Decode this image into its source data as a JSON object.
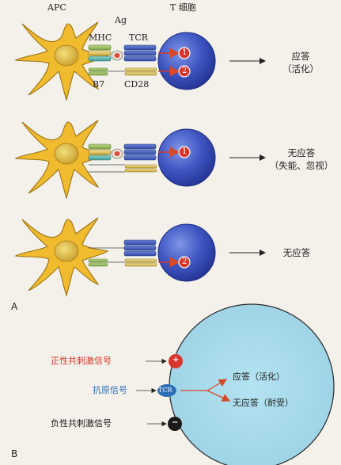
{
  "panel_a": {
    "panel_label": "A",
    "labels": {
      "apc": "APC",
      "ag": "Ag",
      "mhc": "MHC",
      "tcr": "TCR",
      "t_cell": "T 细胞",
      "b7": "B7",
      "cd28": "CD28"
    },
    "rows": [
      {
        "signals": [
          "1",
          "2"
        ],
        "result_line1": "应答",
        "result_line2": "（活化）"
      },
      {
        "signals": [
          "1"
        ],
        "result_line1": "无应答",
        "result_line2": "（失能、忽视）"
      },
      {
        "signals": [
          "2"
        ],
        "result_line1": "无应答",
        "result_line2": ""
      }
    ]
  },
  "panel_b": {
    "panel_label": "B",
    "positive_signal": "正性共刺激信号",
    "antigen_signal": "抗原信号",
    "negative_signal": "负性共刺激信号",
    "tcr_label": "TCR",
    "plus_symbol": "+",
    "minus_symbol": "−",
    "outcome_active": "应答（活化）",
    "outcome_tolerant": "无应答（耐受）",
    "colors": {
      "positive": "#d8352b",
      "antigen": "#2d6db5",
      "negative": "#1a1a1a",
      "cell_fill": "#a9dcec",
      "arrow": "#d64a2a"
    }
  }
}
